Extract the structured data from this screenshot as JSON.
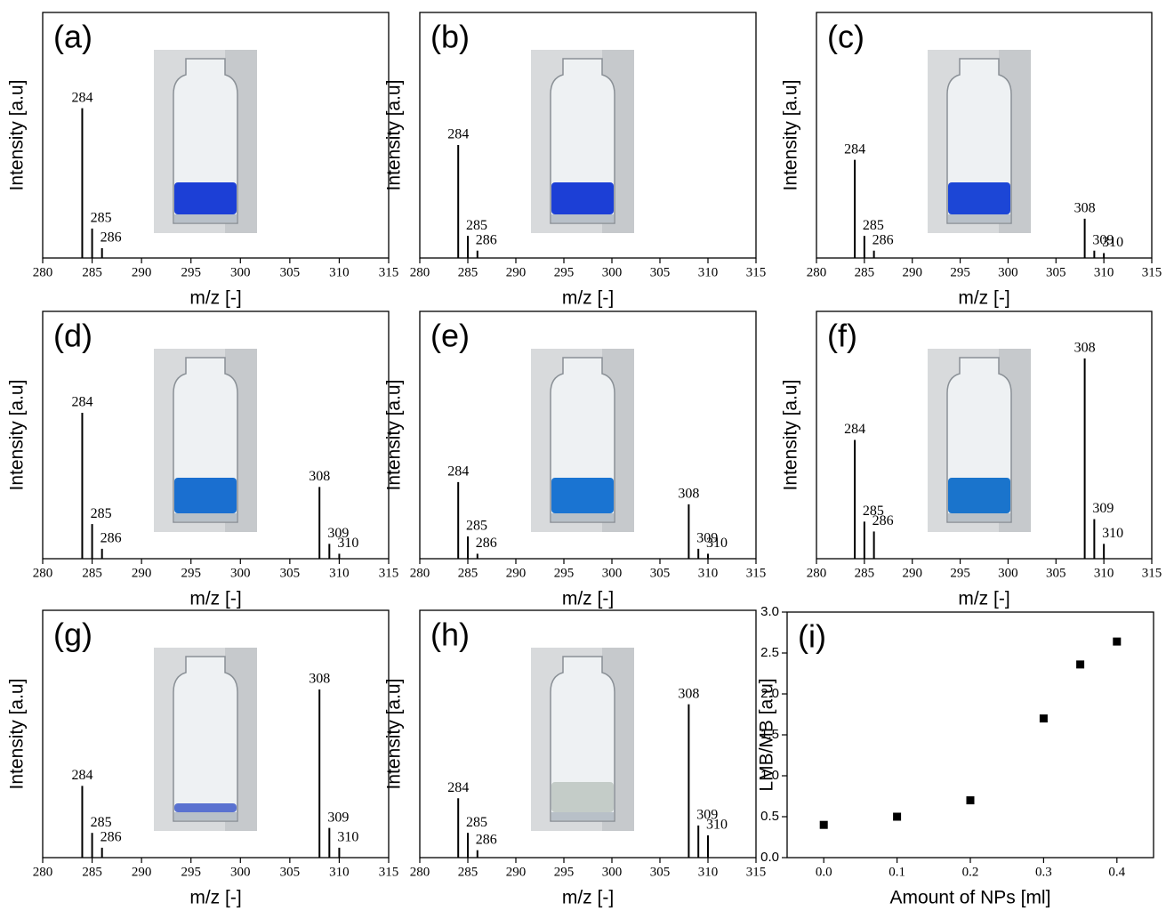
{
  "chart_data": [
    {
      "type": "bar",
      "title": "(a)",
      "x_label": "m/z [-]",
      "y_label": "Intensity [a.u]",
      "x": [
        284,
        285,
        286
      ],
      "values": [
        0.61,
        0.12,
        0.04
      ],
      "color": "#000000",
      "xlim": [
        280,
        315
      ],
      "xticks": [
        280,
        285,
        290,
        295,
        300,
        305,
        310,
        315
      ],
      "ylim": [
        0,
        1
      ]
    },
    {
      "type": "bar",
      "title": "(b)",
      "x_label": "m/z [-]",
      "y_label": "Intensity [a.u]",
      "x": [
        284,
        285,
        286
      ],
      "values": [
        0.46,
        0.09,
        0.03
      ],
      "color": "#000000",
      "xlim": [
        280,
        315
      ],
      "xticks": [
        280,
        285,
        290,
        295,
        300,
        305,
        310,
        315
      ],
      "ylim": [
        0,
        1
      ]
    },
    {
      "type": "bar",
      "title": "(c)",
      "x_label": "m/z [-]",
      "y_label": "Intensity [a.u]",
      "x": [
        284,
        285,
        286,
        308,
        309,
        310
      ],
      "values": [
        0.4,
        0.09,
        0.03,
        0.16,
        0.03,
        0.02
      ],
      "color": "#000000",
      "xlim": [
        280,
        315
      ],
      "xticks": [
        280,
        285,
        290,
        295,
        300,
        305,
        310,
        315
      ],
      "ylim": [
        0,
        1
      ]
    },
    {
      "type": "bar",
      "title": "(d)",
      "x_label": "m/z [-]",
      "y_label": "Intensity [a.u]",
      "x": [
        284,
        285,
        286,
        308,
        309,
        310
      ],
      "values": [
        0.59,
        0.14,
        0.04,
        0.29,
        0.06,
        0.02
      ],
      "color": "#000000",
      "xlim": [
        280,
        315
      ],
      "xticks": [
        280,
        285,
        290,
        295,
        300,
        305,
        310,
        315
      ],
      "ylim": [
        0,
        1
      ]
    },
    {
      "type": "bar",
      "title": "(e)",
      "x_label": "m/z [-]",
      "y_label": "Intensity [a.u]",
      "x": [
        284,
        285,
        286,
        308,
        309,
        310
      ],
      "values": [
        0.31,
        0.09,
        0.02,
        0.22,
        0.04,
        0.02
      ],
      "color": "#000000",
      "xlim": [
        280,
        315
      ],
      "xticks": [
        280,
        285,
        290,
        295,
        300,
        305,
        310,
        315
      ],
      "ylim": [
        0,
        1
      ]
    },
    {
      "type": "bar",
      "title": "(f)",
      "x_label": "m/z [-]",
      "y_label": "Intensity [a.u]",
      "x": [
        284,
        285,
        286,
        308,
        309,
        310
      ],
      "values": [
        0.48,
        0.15,
        0.11,
        0.81,
        0.16,
        0.06
      ],
      "color": "#000000",
      "xlim": [
        280,
        315
      ],
      "xticks": [
        280,
        285,
        290,
        295,
        300,
        305,
        310,
        315
      ],
      "ylim": [
        0,
        1
      ]
    },
    {
      "type": "bar",
      "title": "(g)",
      "x_label": "m/z [-]",
      "y_label": "Intensity [a.u]",
      "x": [
        284,
        285,
        286,
        308,
        309,
        310
      ],
      "values": [
        0.29,
        0.1,
        0.04,
        0.68,
        0.12,
        0.04
      ],
      "color": "#000000",
      "xlim": [
        280,
        315
      ],
      "xticks": [
        280,
        285,
        290,
        295,
        300,
        305,
        310,
        315
      ],
      "ylim": [
        0,
        1
      ]
    },
    {
      "type": "bar",
      "title": "(h)",
      "x_label": "m/z [-]",
      "y_label": "Intensity [a.u]",
      "x": [
        284,
        285,
        286,
        308,
        309,
        310
      ],
      "values": [
        0.24,
        0.1,
        0.03,
        0.62,
        0.13,
        0.09
      ],
      "color": "#000000",
      "xlim": [
        280,
        315
      ],
      "xticks": [
        280,
        285,
        290,
        295,
        300,
        305,
        310,
        315
      ],
      "ylim": [
        0,
        1
      ]
    },
    {
      "type": "scatter",
      "title": "(i)",
      "x_label": "Amount of NPs [ml]",
      "y_label": "LMB/MB [a.u]",
      "x": [
        0,
        0.1,
        0.2,
        0.3,
        0.35,
        0.4
      ],
      "values": [
        0.4,
        0.5,
        0.7,
        1.7,
        2.36,
        2.64
      ],
      "color": "#000000",
      "xlim": [
        -0.05,
        0.45
      ],
      "xticks": [
        {
          "value": 0,
          "label": "0.0"
        },
        0.1,
        0.2,
        0.3,
        0.4
      ],
      "ylim": [
        0,
        3
      ],
      "yticks": [
        {
          "value": 0,
          "label": "0.0"
        },
        0.5,
        {
          "value": 1,
          "label": "1.0"
        },
        1.5,
        {
          "value": 2,
          "label": "2.0"
        },
        2.5,
        {
          "value": 3,
          "label": "3.0"
        }
      ]
    }
  ]
}
